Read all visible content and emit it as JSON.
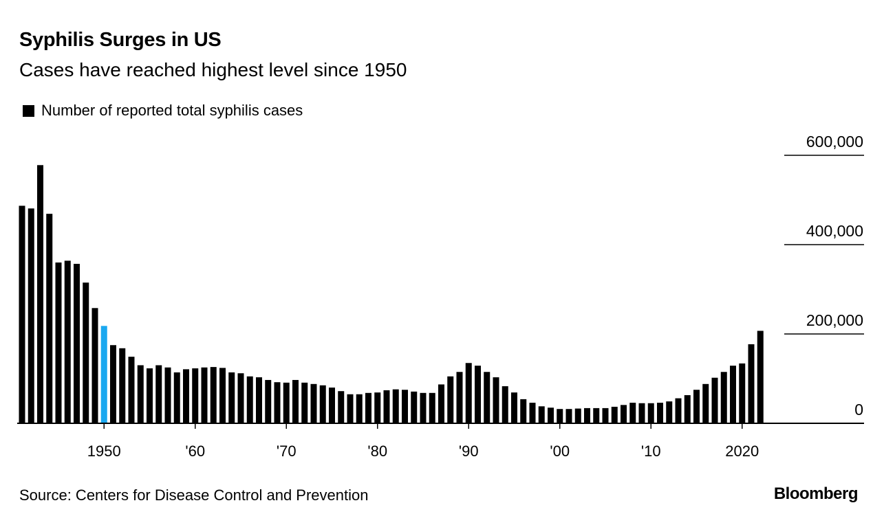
{
  "chart_data": {
    "type": "bar",
    "title": "Syphilis Surges in US",
    "subtitle": "Cases have reached highest level since 1950",
    "legend": [
      "Number of reported total syphilis cases"
    ],
    "legend_placement": "top-left",
    "source": "Source: Centers for Disease Control and Prevention",
    "brand": "Bloomberg",
    "colors": {
      "bar": "#000000",
      "highlight": "#1AA8F0"
    },
    "highlight_year": 1950,
    "ylim": [
      0,
      600000
    ],
    "y_ticks": [
      0,
      200000,
      400000,
      600000
    ],
    "y_tick_labels": [
      "0",
      "200,000",
      "400,000",
      "600,000"
    ],
    "y_axis_side": "right",
    "x_ticks": [
      1950,
      1960,
      1970,
      1980,
      1990,
      2000,
      2010,
      2020
    ],
    "x_tick_labels": [
      "1950",
      "'60",
      "'70",
      "'80",
      "'90",
      "'00",
      "'10",
      "2020"
    ],
    "categories": [
      1941,
      1942,
      1943,
      1944,
      1945,
      1946,
      1947,
      1948,
      1949,
      1950,
      1951,
      1952,
      1953,
      1954,
      1955,
      1956,
      1957,
      1958,
      1959,
      1960,
      1961,
      1962,
      1963,
      1964,
      1965,
      1966,
      1967,
      1968,
      1969,
      1970,
      1971,
      1972,
      1973,
      1974,
      1975,
      1976,
      1977,
      1978,
      1979,
      1980,
      1981,
      1982,
      1983,
      1984,
      1985,
      1986,
      1987,
      1988,
      1989,
      1990,
      1991,
      1992,
      1993,
      1994,
      1995,
      1996,
      1997,
      1998,
      1999,
      2000,
      2001,
      2002,
      2003,
      2004,
      2005,
      2006,
      2007,
      2008,
      2009,
      2010,
      2011,
      2012,
      2013,
      2014,
      2015,
      2016,
      2017,
      2018,
      2019,
      2020,
      2021,
      2022
    ],
    "values": [
      487000,
      481000,
      578000,
      469000,
      360000,
      364000,
      357000,
      315000,
      258000,
      218000,
      175000,
      168000,
      149000,
      130000,
      123000,
      130000,
      125000,
      114000,
      121000,
      123000,
      125000,
      126000,
      124000,
      114000,
      112000,
      105000,
      103000,
      97000,
      92000,
      91000,
      97000,
      91000,
      88000,
      85000,
      80000,
      72000,
      65000,
      65000,
      68000,
      69000,
      74000,
      76000,
      75000,
      71000,
      68000,
      68000,
      87000,
      105000,
      115000,
      135000,
      129000,
      115000,
      103000,
      83000,
      69000,
      54000,
      46000,
      38000,
      35000,
      32000,
      32000,
      33000,
      34000,
      34000,
      34000,
      37000,
      41000,
      46000,
      45000,
      45000,
      46000,
      49000,
      56000,
      63000,
      75000,
      88000,
      102000,
      115000,
      129000,
      134000,
      177000,
      207000
    ]
  }
}
